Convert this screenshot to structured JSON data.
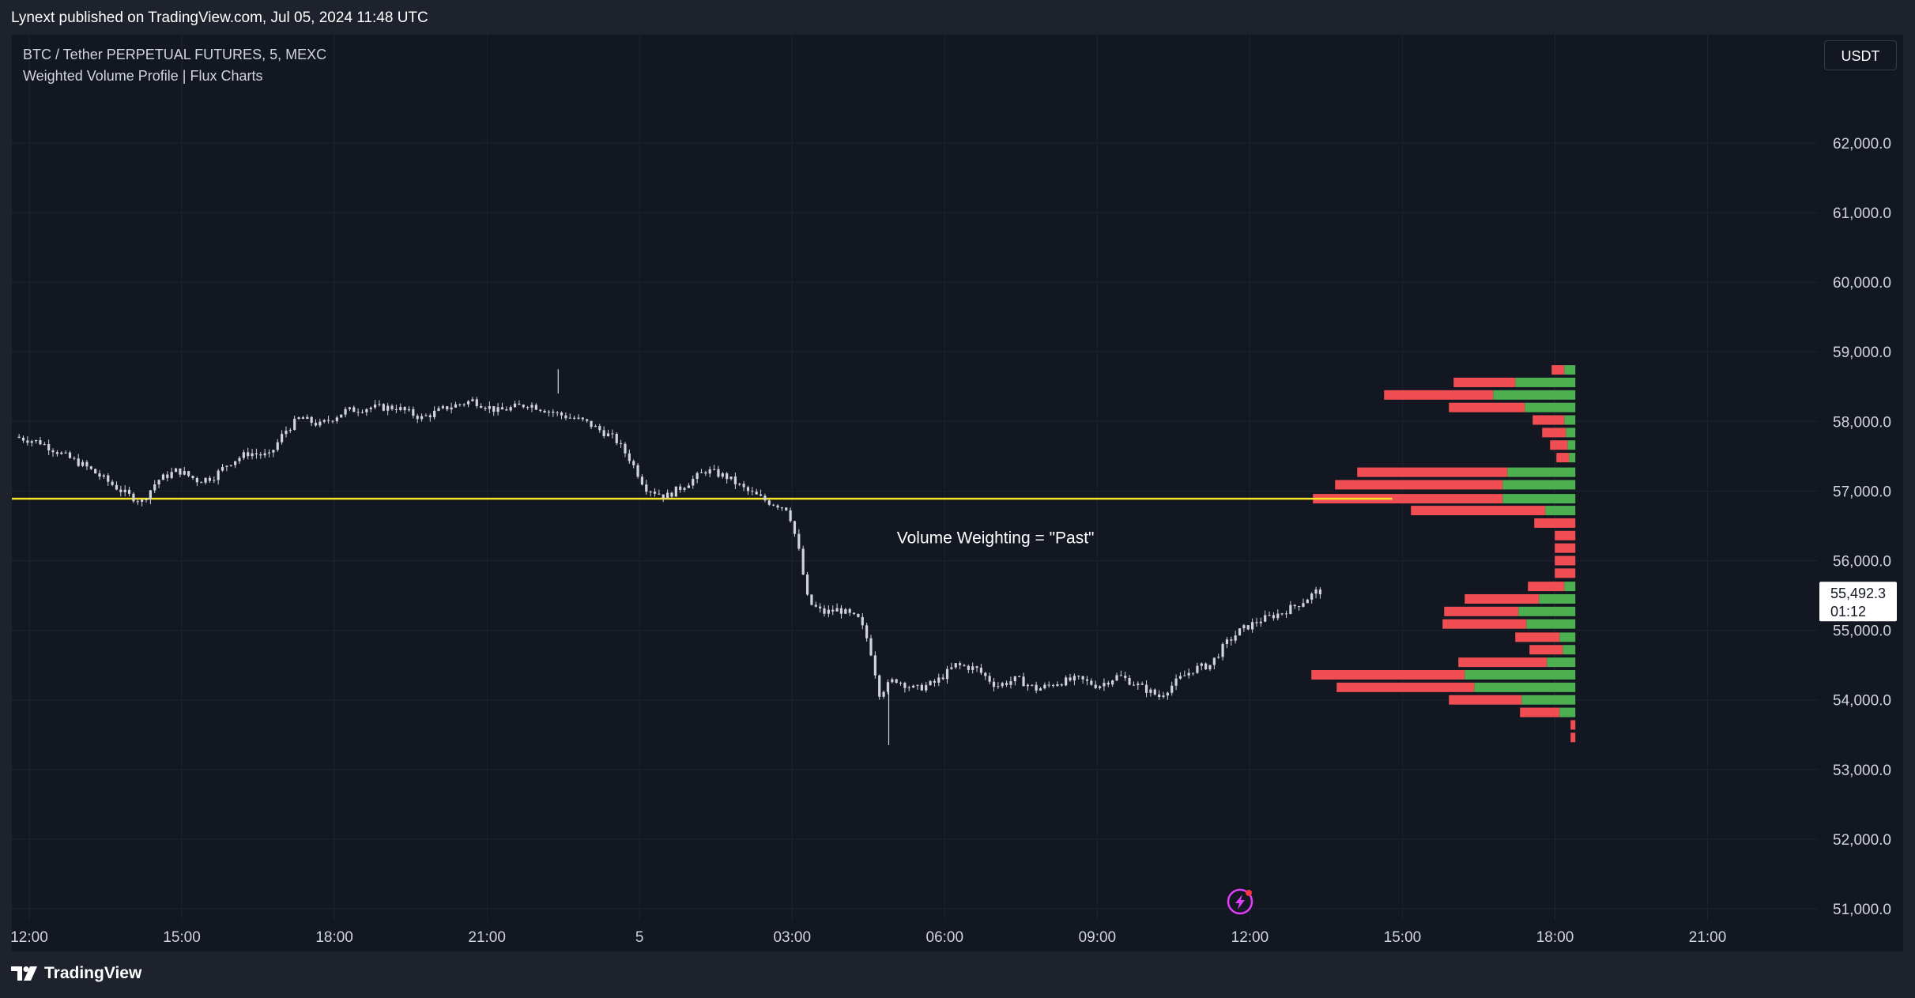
{
  "header": {
    "published": "Lynext published on TradingView.com, Jul 05, 2024 11:48 UTC"
  },
  "legend": {
    "symbol": "BTC / Tether PERPETUAL FUTURES, 5, MEXC",
    "indicator": "Weighted Volume Profile | Flux Charts"
  },
  "currency": "USDT",
  "footer": {
    "brand": "TradingView"
  },
  "colors": {
    "background": "#131722",
    "frame": "#1e222d",
    "grid": "#1f2330",
    "candle": "#d1d4dc",
    "poc_line": "#f5e625",
    "buy_volume": "#4caf50",
    "sell_volume": "#f04e53",
    "axis_text": "#d1d4dc"
  },
  "icons": {
    "flash": "lightning-icon",
    "brand": "tradingview-logo-icon"
  },
  "chart_data": {
    "type": "candlestick",
    "symbol": "BTC/USDT",
    "timeframe": "5",
    "y_ticks": [
      51000,
      52000,
      53000,
      54000,
      55000,
      56000,
      57000,
      58000,
      59000,
      60000,
      61000,
      62000
    ],
    "y_tick_labels": [
      "51,000.0",
      "52,000.0",
      "53,000.0",
      "54,000.0",
      "55,000.0",
      "56,000.0",
      "57,000.0",
      "58,000.0",
      "59,000.0",
      "60,000.0",
      "61,000.0",
      "62,000.0"
    ],
    "ylim": [
      50750,
      63000
    ],
    "x_tick_labels": [
      "12:00",
      "15:00",
      "18:00",
      "21:00",
      "5",
      "03:00",
      "06:00",
      "09:00",
      "12:00",
      "15:00",
      "18:00",
      "21:00"
    ],
    "x_ticks_hours": [
      0,
      3,
      6,
      9,
      12,
      15,
      18,
      21,
      24,
      27,
      30,
      33
    ],
    "xlim_hours": [
      0,
      35.7
    ],
    "price_path": [
      [
        -0.2,
        57780
      ],
      [
        0.3,
        57700
      ],
      [
        0.8,
        57500
      ],
      [
        1.2,
        57350
      ],
      [
        1.6,
        57150
      ],
      [
        2.0,
        56950
      ],
      [
        2.3,
        56850
      ],
      [
        2.6,
        57150
      ],
      [
        3.0,
        57300
      ],
      [
        3.4,
        57150
      ],
      [
        3.7,
        57200
      ],
      [
        4.0,
        57400
      ],
      [
        4.4,
        57550
      ],
      [
        4.8,
        57500
      ],
      [
        5.1,
        57850
      ],
      [
        5.4,
        58050
      ],
      [
        5.8,
        57950
      ],
      [
        6.3,
        58150
      ],
      [
        6.8,
        58200
      ],
      [
        7.3,
        58200
      ],
      [
        7.8,
        58050
      ],
      [
        8.3,
        58200
      ],
      [
        8.8,
        58300
      ],
      [
        9.3,
        58150
      ],
      [
        9.9,
        58250
      ],
      [
        10.5,
        58100
      ],
      [
        11.0,
        58000
      ],
      [
        11.6,
        57750
      ],
      [
        11.9,
        57450
      ],
      [
        12.2,
        57050
      ],
      [
        12.6,
        56920
      ],
      [
        13.0,
        57100
      ],
      [
        13.4,
        57300
      ],
      [
        13.8,
        57200
      ],
      [
        14.2,
        57000
      ],
      [
        14.6,
        56850
      ],
      [
        15.0,
        56750
      ],
      [
        15.2,
        56200
      ],
      [
        15.4,
        55400
      ],
      [
        15.7,
        55250
      ],
      [
        16.0,
        55300
      ],
      [
        16.4,
        55150
      ],
      [
        16.6,
        54800
      ],
      [
        16.8,
        54100
      ],
      [
        17.1,
        54300
      ],
      [
        17.5,
        54150
      ],
      [
        17.9,
        54250
      ],
      [
        18.3,
        54500
      ],
      [
        18.7,
        54450
      ],
      [
        19.1,
        54200
      ],
      [
        19.5,
        54300
      ],
      [
        19.9,
        54150
      ],
      [
        20.3,
        54250
      ],
      [
        20.7,
        54300
      ],
      [
        21.1,
        54200
      ],
      [
        21.5,
        54350
      ],
      [
        21.9,
        54200
      ],
      [
        22.3,
        54050
      ],
      [
        22.7,
        54300
      ],
      [
        23.0,
        54450
      ],
      [
        23.3,
        54500
      ],
      [
        23.6,
        54800
      ],
      [
        23.9,
        55000
      ],
      [
        24.3,
        55150
      ],
      [
        24.7,
        55250
      ],
      [
        25.1,
        55400
      ],
      [
        25.4,
        55560
      ]
    ],
    "price_extremes": {
      "high": {
        "t": 10.4,
        "price": 58750
      },
      "low": {
        "t": 16.9,
        "price": 53350
      }
    },
    "poc_price": 56890,
    "poc_line_range_hours": [
      0,
      26.8
    ],
    "last_price": {
      "value": "55,492.3",
      "countdown": "01:12",
      "price": 55492.3
    },
    "annotation": {
      "text": "Volume Weighting = \"Past\"",
      "t": 19.0,
      "price": 56250
    },
    "volume_profile": {
      "right_edge_hours": 30.4,
      "rows": [
        {
          "price": 58740,
          "sell": 0.08,
          "buy": 0.07
        },
        {
          "price": 58560,
          "sell": 0.39,
          "buy": 0.38
        },
        {
          "price": 58380,
          "sell": 0.69,
          "buy": 0.52
        },
        {
          "price": 58200,
          "sell": 0.48,
          "buy": 0.32
        },
        {
          "price": 58020,
          "sell": 0.2,
          "buy": 0.07
        },
        {
          "price": 57840,
          "sell": 0.15,
          "buy": 0.06
        },
        {
          "price": 57660,
          "sell": 0.11,
          "buy": 0.05
        },
        {
          "price": 57480,
          "sell": 0.08,
          "buy": 0.04
        },
        {
          "price": 57270,
          "sell": 0.95,
          "buy": 0.43
        },
        {
          "price": 57090,
          "sell": 1.06,
          "buy": 0.46
        },
        {
          "price": 56890,
          "sell": 1.2,
          "buy": 0.46
        },
        {
          "price": 56720,
          "sell": 0.85,
          "buy": 0.19
        },
        {
          "price": 56540,
          "sell": 0.26,
          "buy": 0.0
        },
        {
          "price": 56360,
          "sell": 0.13,
          "buy": 0.0
        },
        {
          "price": 56180,
          "sell": 0.13,
          "buy": 0.0
        },
        {
          "price": 56000,
          "sell": 0.13,
          "buy": 0.0
        },
        {
          "price": 55820,
          "sell": 0.13,
          "buy": 0.0
        },
        {
          "price": 55630,
          "sell": 0.23,
          "buy": 0.07
        },
        {
          "price": 55450,
          "sell": 0.47,
          "buy": 0.23
        },
        {
          "price": 55270,
          "sell": 0.47,
          "buy": 0.36
        },
        {
          "price": 55090,
          "sell": 0.53,
          "buy": 0.31
        },
        {
          "price": 54900,
          "sell": 0.28,
          "buy": 0.1
        },
        {
          "price": 54720,
          "sell": 0.21,
          "buy": 0.08
        },
        {
          "price": 54540,
          "sell": 0.56,
          "buy": 0.18
        },
        {
          "price": 54360,
          "sell": 0.97,
          "buy": 0.7
        },
        {
          "price": 54180,
          "sell": 0.87,
          "buy": 0.64
        },
        {
          "price": 54000,
          "sell": 0.46,
          "buy": 0.34
        },
        {
          "price": 53820,
          "sell": 0.25,
          "buy": 0.1
        },
        {
          "price": 53640,
          "sell": 0.03,
          "buy": 0.0
        },
        {
          "price": 53460,
          "sell": 0.03,
          "buy": 0.0
        }
      ]
    }
  }
}
